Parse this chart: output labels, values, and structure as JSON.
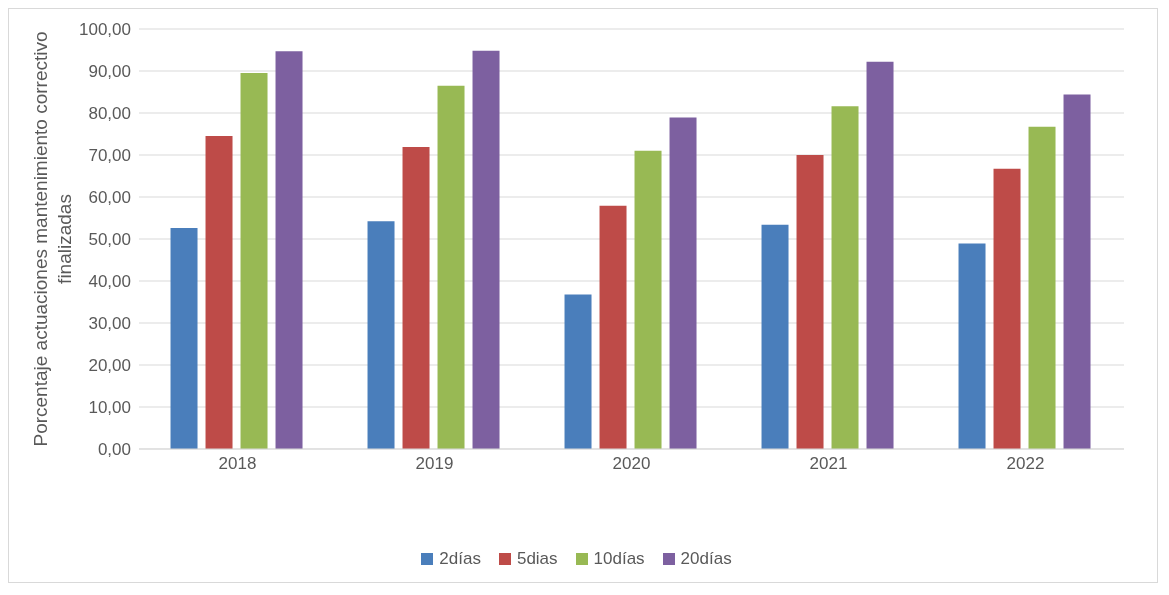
{
  "chart_data": {
    "type": "bar",
    "ylabel": "Porcentaje actuaciones mantenimiento correctivo finalizadas",
    "categories": [
      "2018",
      "2019",
      "2020",
      "2021",
      "2022"
    ],
    "series": [
      {
        "name": "2días",
        "color": "#4a7ebb",
        "values": [
          52.6,
          54.2,
          36.8,
          53.4,
          48.9
        ]
      },
      {
        "name": "5dias",
        "color": "#be4b48",
        "values": [
          74.5,
          71.9,
          57.9,
          70.0,
          66.7
        ]
      },
      {
        "name": "10días",
        "color": "#98b954",
        "values": [
          89.5,
          86.5,
          71.0,
          81.6,
          76.7
        ]
      },
      {
        "name": "20días",
        "color": "#7d60a0",
        "values": [
          94.7,
          94.8,
          78.9,
          92.2,
          84.4
        ]
      }
    ],
    "ylim": [
      0,
      100
    ],
    "yticks": [
      {
        "value": 0,
        "label": "0,00"
      },
      {
        "value": 10,
        "label": "10,00"
      },
      {
        "value": 20,
        "label": "20,00"
      },
      {
        "value": 30,
        "label": "30,00"
      },
      {
        "value": 40,
        "label": "40,00"
      },
      {
        "value": 50,
        "label": "50,00"
      },
      {
        "value": 60,
        "label": "60,00"
      },
      {
        "value": 70,
        "label": "70,00"
      },
      {
        "value": 80,
        "label": "80,00"
      },
      {
        "value": 90,
        "label": "90,00"
      },
      {
        "value": 100,
        "label": "100,00"
      }
    ],
    "grid": "y",
    "legend": "bottom"
  }
}
